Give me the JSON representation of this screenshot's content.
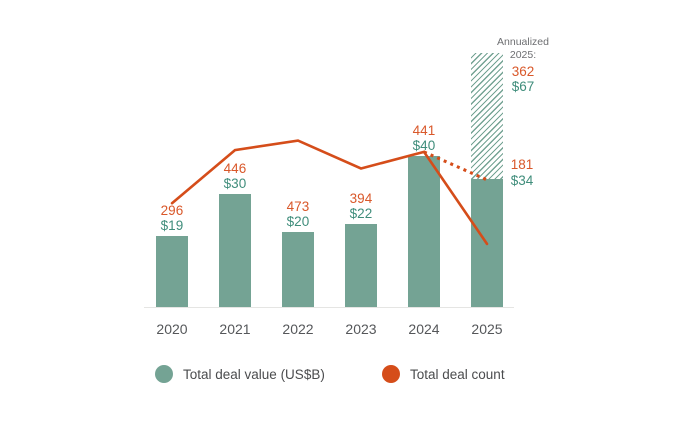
{
  "background": "#ffffff",
  "colors": {
    "bar_teal": "#74a394",
    "value_label_teal": "#3f8d7b",
    "count_line_orange": "#d54d1a",
    "count_label_orange": "#d9582a",
    "annualized_note_gray": "#6d6e71",
    "axis_tick_gray": "#55575a",
    "legend_text_gray": "#4b4c4e",
    "baseline_gray": "#e5e5e3"
  },
  "chart_data": {
    "type": "bar+line",
    "categories": [
      "2020",
      "2021",
      "2022",
      "2023",
      "2024",
      "2025"
    ],
    "series": [
      {
        "name": "Total deal value (US$B)",
        "type": "bar",
        "unit": "US$B",
        "value_prefix": "$",
        "values": [
          19,
          30,
          20,
          22,
          40,
          34
        ]
      },
      {
        "name": "Total deal count",
        "type": "line",
        "values": [
          296,
          446,
          473,
          394,
          441,
          181
        ]
      }
    ],
    "annualized_2025": {
      "heading_line1": "Annualized",
      "heading_line2": "2025:",
      "deal_count": 362,
      "deal_value": 67,
      "value_prefix": "$",
      "bar_style": "diagonal-hatch",
      "line_style": "dotted-projection"
    },
    "axes": {
      "x_ticks": [
        "2020",
        "2021",
        "2022",
        "2023",
        "2024",
        "2025"
      ],
      "y_axis": "hidden",
      "gridlines": false
    },
    "legend_position": "bottom"
  },
  "legend": {
    "items": [
      {
        "label": "Total deal value (US$B)",
        "swatch": "teal-circle"
      },
      {
        "label": "Total deal count",
        "swatch": "orange-circle"
      }
    ]
  }
}
